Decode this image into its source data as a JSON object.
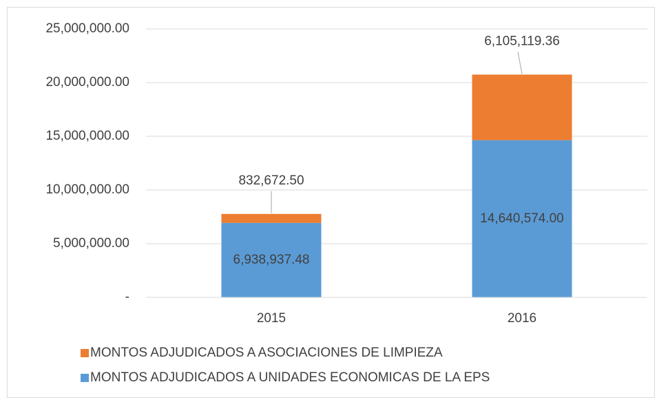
{
  "chart_data": {
    "type": "stacked_bar",
    "categories": [
      "2015",
      "2016"
    ],
    "series": [
      {
        "name": "MONTOS ADJUDICADOS A UNIDADES ECONOMICAS DE LA EPS",
        "color": "#5b9bd5",
        "values": [
          6938937.48,
          14640574.0
        ],
        "value_labels": [
          "6,938,937.48",
          "14,640,574.00"
        ]
      },
      {
        "name": "MONTOS ADJUDICADOS A ASOCIACIONES DE LIMPIEZA",
        "color": "#ed7d31",
        "values": [
          832672.5,
          6105119.36
        ],
        "value_labels": [
          "832,672.50",
          "6,105,119.36"
        ]
      }
    ],
    "ylim": [
      0,
      25000000
    ],
    "yticks": [
      {
        "value": 0,
        "label": "-"
      },
      {
        "value": 5000000,
        "label": "5,000,000.00"
      },
      {
        "value": 10000000,
        "label": "10,000,000.00"
      },
      {
        "value": 15000000,
        "label": "15,000,000.00"
      },
      {
        "value": 20000000,
        "label": "20,000,000.00"
      },
      {
        "value": 25000000,
        "label": "25,000,000.00"
      }
    ],
    "grid": true,
    "legend": "bottom"
  }
}
